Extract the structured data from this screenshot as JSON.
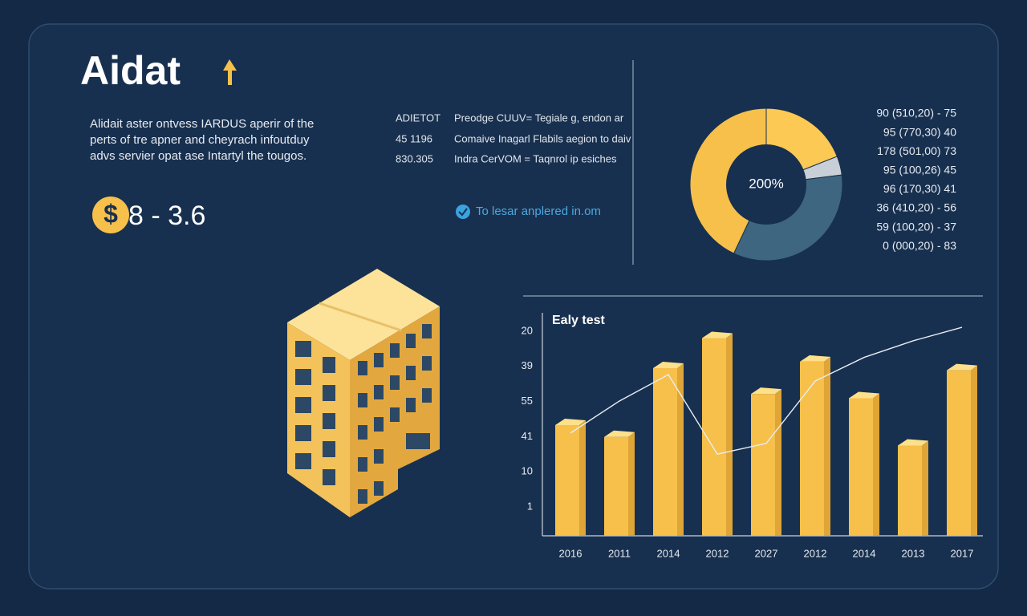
{
  "header": {
    "title": "Aidat"
  },
  "intro": [
    "Alidait aster ontvess IARDUS aperir of the",
    "perts of tre apner and cheyrach infoutduy",
    "advs servier opat ase Intartyl the tougos."
  ],
  "price": {
    "symbol": "$",
    "text": "8 - 3.6"
  },
  "table": {
    "rows": [
      [
        "ADIETOT",
        "Preodge CUUV= Tegiale g, endon ar"
      ],
      [
        "45 1196",
        "Comaive Inagarl Flabils aegion to daiv"
      ],
      [
        "830.305",
        "Indra CerVOM = Taqnrol ip esiches"
      ]
    ]
  },
  "link": "To lesar anplered in.om",
  "legend_lines": [
    "90 (510,20) - 75",
    "95 (770,30)  40",
    "178 (501,00)  73",
    "95 (100,26)  45",
    "96 (170,30)  41",
    "36 (410,20) - 56",
    "59 (100,20) - 37",
    "0 (000,20) - 83"
  ],
  "chart_data": [
    {
      "type": "pie",
      "center_label": "200%",
      "values": [
        19,
        4,
        34,
        43
      ],
      "colors": [
        "#fcc954",
        "#c9cfd6",
        "#3e6680",
        "#f6c04b"
      ]
    },
    {
      "type": "bar",
      "title": "Ealy test",
      "categories": [
        "2016",
        "2011",
        "2014",
        "2012",
        "2027",
        "2012",
        "2014",
        "2013",
        "2017"
      ],
      "y_axis_labels": [
        "20",
        "39",
        "55",
        "41",
        "10",
        "1"
      ],
      "ylim": [
        0,
        100
      ],
      "series": [
        {
          "type": "bar",
          "color": "#f6c04b",
          "values": [
            51.5,
            46,
            78,
            92,
            66,
            81,
            64,
            42,
            77
          ]
        },
        {
          "type": "line",
          "color": "#e8edf3",
          "values": [
            47.8,
            62.7,
            75,
            38,
            43,
            72,
            83,
            90.7,
            97
          ]
        }
      ]
    }
  ]
}
